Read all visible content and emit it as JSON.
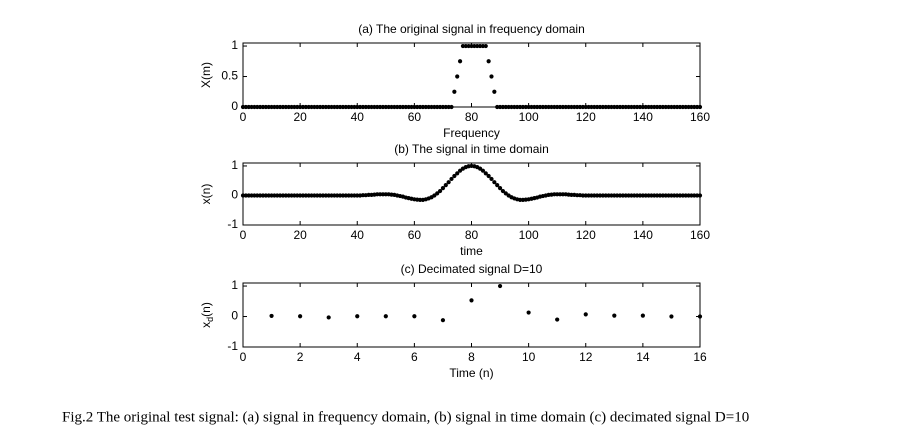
{
  "caption": "Fig.2  The original test signal: (a) signal in frequency domain, (b) signal in time domain (c) decimated signal D=10",
  "chart_data": [
    {
      "type": "scatter",
      "title": "(a) The original signal in frequency domain",
      "xlabel": "Frequency",
      "ylabel": "X(m)",
      "color": "#000000",
      "xlim": [
        0,
        160
      ],
      "xticks": [
        0,
        20,
        40,
        60,
        80,
        100,
        120,
        140,
        160
      ],
      "ylim": [
        0,
        1.05
      ],
      "yticks": [
        0,
        0.5,
        1
      ],
      "x": [
        0,
        1,
        2,
        3,
        4,
        5,
        6,
        7,
        8,
        9,
        10,
        11,
        12,
        13,
        14,
        15,
        16,
        17,
        18,
        19,
        20,
        21,
        22,
        23,
        24,
        25,
        26,
        27,
        28,
        29,
        30,
        31,
        32,
        33,
        34,
        35,
        36,
        37,
        38,
        39,
        40,
        41,
        42,
        43,
        44,
        45,
        46,
        47,
        48,
        49,
        50,
        51,
        52,
        53,
        54,
        55,
        56,
        57,
        58,
        59,
        60,
        61,
        62,
        63,
        64,
        65,
        66,
        67,
        68,
        69,
        70,
        71,
        72,
        73,
        74,
        75,
        76,
        77,
        78,
        79,
        80,
        81,
        82,
        83,
        84,
        85,
        86,
        87,
        88,
        89,
        90,
        91,
        92,
        93,
        94,
        95,
        96,
        97,
        98,
        99,
        100,
        101,
        102,
        103,
        104,
        105,
        106,
        107,
        108,
        109,
        110,
        111,
        112,
        113,
        114,
        115,
        116,
        117,
        118,
        119,
        120,
        121,
        122,
        123,
        124,
        125,
        126,
        127,
        128,
        129,
        130,
        131,
        132,
        133,
        134,
        135,
        136,
        137,
        138,
        139,
        140,
        141,
        142,
        143,
        144,
        145,
        146,
        147,
        148,
        149,
        150,
        151,
        152,
        153,
        154,
        155,
        156,
        157,
        158,
        159,
        160
      ],
      "values": [
        0,
        0,
        0,
        0,
        0,
        0,
        0,
        0,
        0,
        0,
        0,
        0,
        0,
        0,
        0,
        0,
        0,
        0,
        0,
        0,
        0,
        0,
        0,
        0,
        0,
        0,
        0,
        0,
        0,
        0,
        0,
        0,
        0,
        0,
        0,
        0,
        0,
        0,
        0,
        0,
        0,
        0,
        0,
        0,
        0,
        0,
        0,
        0,
        0,
        0,
        0,
        0,
        0,
        0,
        0,
        0,
        0,
        0,
        0,
        0,
        0,
        0,
        0,
        0,
        0,
        0,
        0,
        0,
        0,
        0,
        0,
        0,
        0,
        0,
        0.25,
        0.5,
        0.75,
        1,
        1,
        1,
        1,
        1,
        1,
        1,
        1,
        1,
        0.75,
        0.5,
        0.25,
        0,
        0,
        0,
        0,
        0,
        0,
        0,
        0,
        0,
        0,
        0,
        0,
        0,
        0,
        0,
        0,
        0,
        0,
        0,
        0,
        0,
        0,
        0,
        0,
        0,
        0,
        0,
        0,
        0,
        0,
        0,
        0,
        0,
        0,
        0,
        0,
        0,
        0,
        0,
        0,
        0,
        0,
        0,
        0,
        0,
        0,
        0,
        0,
        0,
        0,
        0,
        0,
        0,
        0,
        0,
        0,
        0,
        0,
        0,
        0,
        0,
        0,
        0,
        0,
        0,
        0,
        0,
        0,
        0,
        0,
        0,
        0
      ]
    },
    {
      "type": "scatter",
      "title": "(b) The signal in time domain",
      "xlabel": "time",
      "ylabel": "x(n)",
      "color": "#000000",
      "xlim": [
        0,
        160
      ],
      "xticks": [
        0,
        20,
        40,
        60,
        80,
        100,
        120,
        140,
        160
      ],
      "ylim": [
        -1,
        1.1
      ],
      "yticks": [
        -1,
        0,
        1
      ],
      "x": [
        0,
        1,
        2,
        3,
        4,
        5,
        6,
        7,
        8,
        9,
        10,
        11,
        12,
        13,
        14,
        15,
        16,
        17,
        18,
        19,
        20,
        21,
        22,
        23,
        24,
        25,
        26,
        27,
        28,
        29,
        30,
        31,
        32,
        33,
        34,
        35,
        36,
        37,
        38,
        39,
        40,
        41,
        42,
        43,
        44,
        45,
        46,
        47,
        48,
        49,
        50,
        51,
        52,
        53,
        54,
        55,
        56,
        57,
        58,
        59,
        60,
        61,
        62,
        63,
        64,
        65,
        66,
        67,
        68,
        69,
        70,
        71,
        72,
        73,
        74,
        75,
        76,
        77,
        78,
        79,
        80,
        81,
        82,
        83,
        84,
        85,
        86,
        87,
        88,
        89,
        90,
        91,
        92,
        93,
        94,
        95,
        96,
        97,
        98,
        99,
        100,
        101,
        102,
        103,
        104,
        105,
        106,
        107,
        108,
        109,
        110,
        111,
        112,
        113,
        114,
        115,
        116,
        117,
        118,
        119,
        120,
        121,
        122,
        123,
        124,
        125,
        126,
        127,
        128,
        129,
        130,
        131,
        132,
        133,
        134,
        135,
        136,
        137,
        138,
        139,
        140,
        141,
        142,
        143,
        144,
        145,
        146,
        147,
        148,
        149,
        150,
        151,
        152,
        153,
        154,
        155,
        156,
        157,
        158,
        159,
        160
      ],
      "values": [
        0,
        0,
        0,
        0,
        0,
        0,
        0,
        0,
        0,
        0,
        0,
        0,
        0,
        0,
        0,
        0,
        0,
        0,
        0,
        0,
        0,
        0,
        0,
        0,
        0,
        0,
        0,
        0,
        0,
        0,
        0,
        0,
        0,
        0,
        0,
        0,
        0,
        0,
        0,
        0,
        0,
        0,
        0.01,
        0.01,
        0.02,
        0.02,
        0.03,
        0.04,
        0.04,
        0.04,
        0.04,
        0.04,
        0.03,
        0.02,
        0,
        -0.02,
        -0.04,
        -0.07,
        -0.09,
        -0.11,
        -0.13,
        -0.14,
        -0.15,
        -0.15,
        -0.13,
        -0.1,
        -0.06,
        0,
        0.07,
        0.15,
        0.25,
        0.35,
        0.45,
        0.56,
        0.66,
        0.75,
        0.84,
        0.91,
        0.96,
        0.99,
        1,
        0.99,
        0.96,
        0.91,
        0.84,
        0.75,
        0.66,
        0.56,
        0.45,
        0.35,
        0.25,
        0.15,
        0.07,
        0,
        -0.06,
        -0.1,
        -0.13,
        -0.15,
        -0.15,
        -0.14,
        -0.13,
        -0.11,
        -0.09,
        -0.07,
        -0.04,
        -0.02,
        0,
        0.02,
        0.03,
        0.04,
        0.04,
        0.04,
        0.04,
        0.04,
        0.03,
        0.02,
        0.02,
        0.01,
        0.01,
        0,
        0,
        0,
        0,
        0,
        0,
        0,
        0,
        0,
        0,
        0,
        0,
        0,
        0,
        0,
        0,
        0,
        0,
        0,
        0,
        0,
        0,
        0,
        0,
        0,
        0,
        0,
        0,
        0,
        0,
        0,
        0,
        0,
        0,
        0,
        0,
        0,
        0,
        0,
        0,
        0,
        0
      ]
    },
    {
      "type": "scatter",
      "title": "(c) Decimated signal D=10",
      "xlabel": "Time (n)",
      "ylabel": "x",
      "ylabel_subscript": "d",
      "ylabel_suffix": "(n)",
      "color": "#000000",
      "xlim": [
        0,
        16
      ],
      "xticks": [
        0,
        2,
        4,
        6,
        8,
        10,
        12,
        14,
        16
      ],
      "ylim": [
        -1,
        1.1
      ],
      "yticks": [
        -1,
        0,
        1
      ],
      "x": [
        1,
        2,
        3,
        4,
        5,
        6,
        7,
        8,
        9,
        10,
        11,
        12,
        13,
        14,
        15,
        16
      ],
      "values": [
        0.02,
        0.01,
        -0.03,
        0.01,
        0.01,
        0.01,
        -0.12,
        0.53,
        1,
        0.13,
        -0.1,
        0.07,
        0.03,
        0.03,
        0,
        0
      ]
    }
  ]
}
